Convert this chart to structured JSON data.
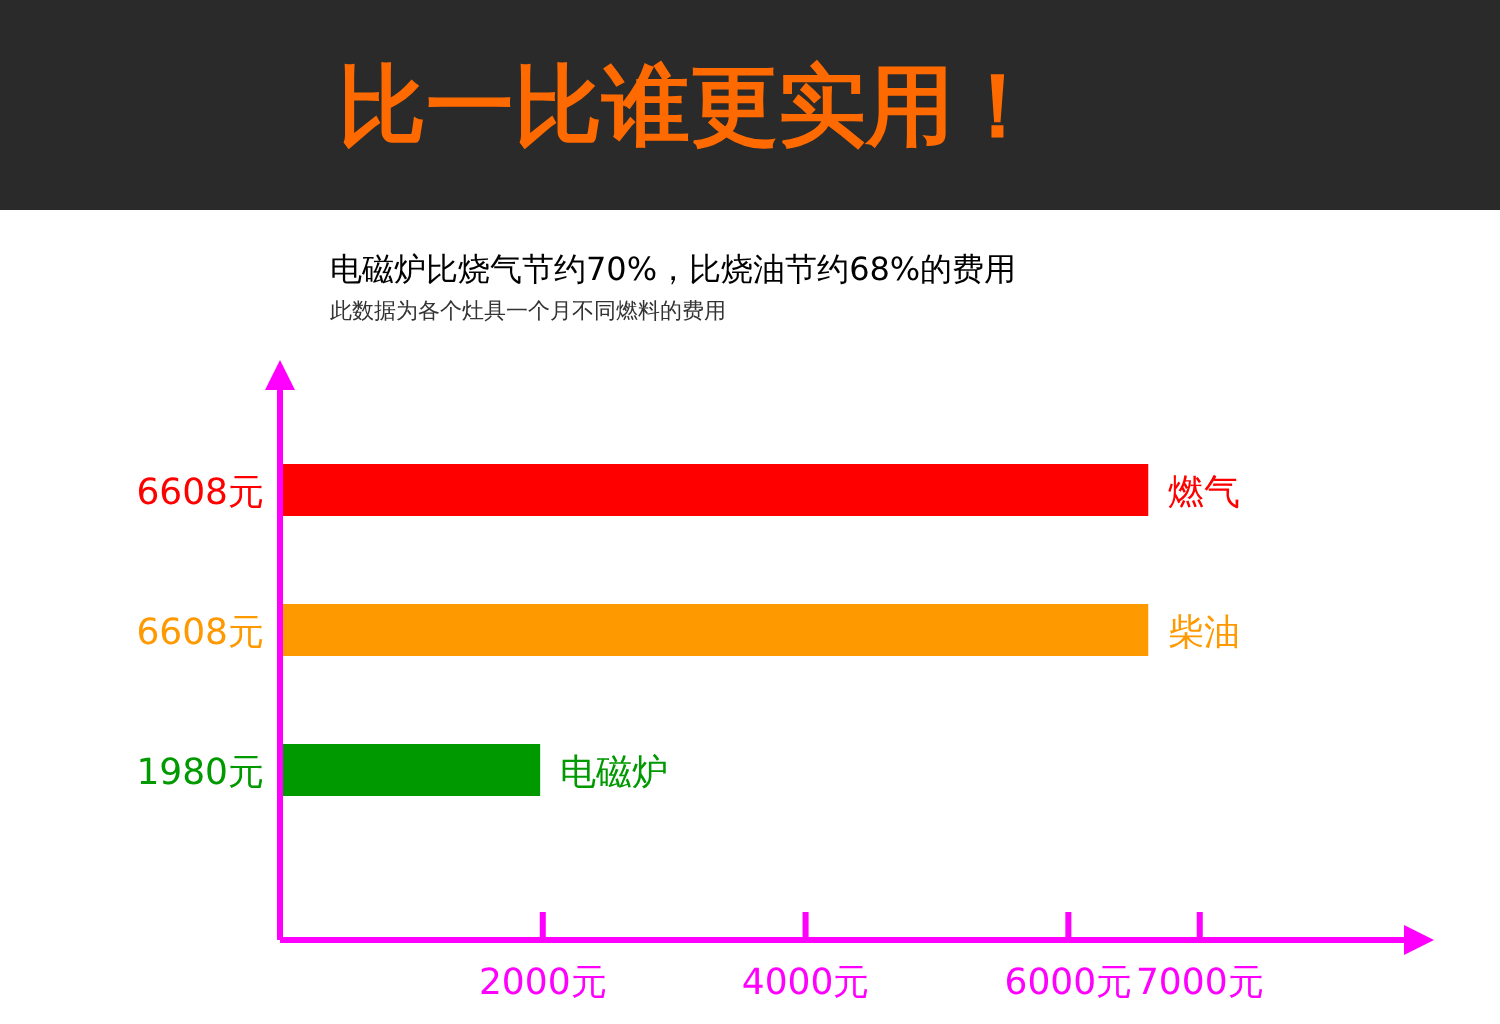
{
  "chart_data": {
    "type": "bar",
    "orientation": "horizontal",
    "title": "比一比谁更实用！",
    "subtitle": "电磁炉比烧气节约70%，比烧油节约68%的费用",
    "annotations": [
      "此数据为各个灶具一个月不同燃料的费用"
    ],
    "categories": [
      "燃气",
      "柴油",
      "电磁炉"
    ],
    "values": [
      6608,
      6608,
      1980
    ],
    "value_labels": [
      "6608元",
      "6608元",
      "1980元"
    ],
    "colors": [
      "#ff0000",
      "#ff9900",
      "#009900"
    ],
    "xlim": [
      0,
      8600
    ],
    "xticks": [
      {
        "value": 2000,
        "label": "2000元"
      },
      {
        "value": 4000,
        "label": "4000元"
      },
      {
        "value": 6000,
        "label": "6000元"
      },
      {
        "value": 7000,
        "label": "7000元"
      }
    ]
  }
}
